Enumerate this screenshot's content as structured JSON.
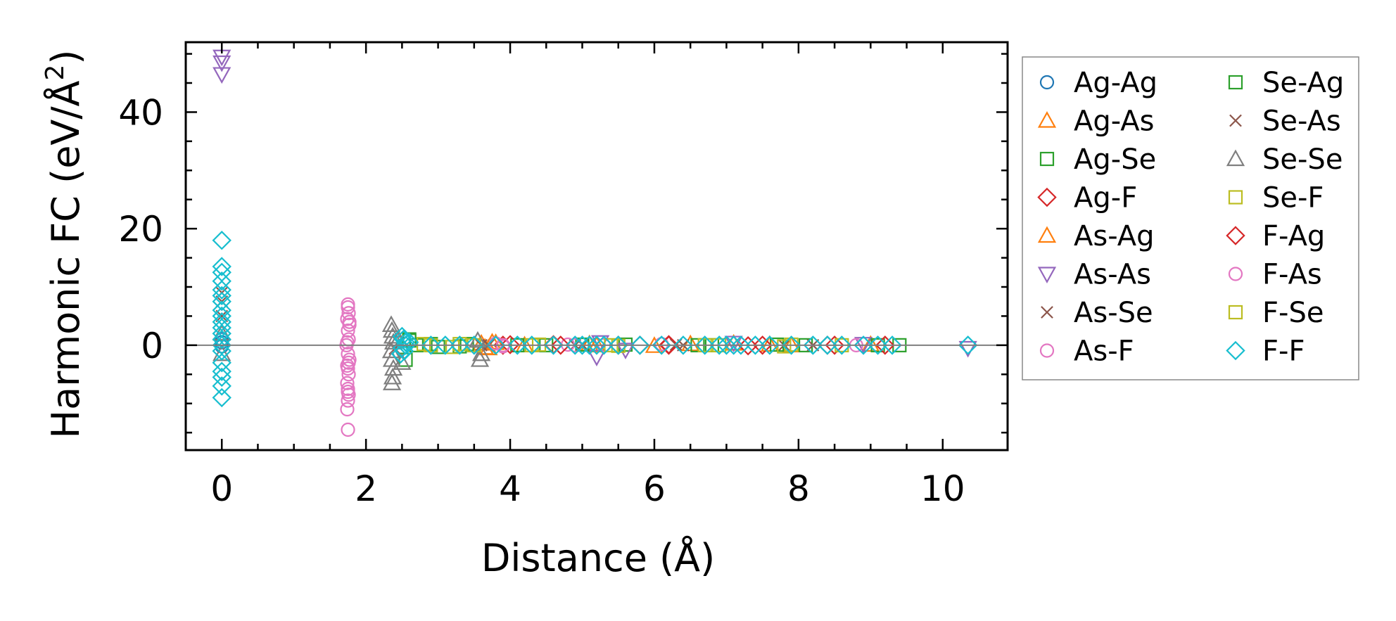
{
  "chart_data": {
    "type": "scatter",
    "title": "",
    "xlabel": "Distance (Å)",
    "ylabel_main": "Harmonic FC (eV/Å",
    "ylabel_sup": "2",
    "ylabel_end": ")",
    "xlim": [
      -0.5,
      10.9
    ],
    "ylim": [
      -18,
      52
    ],
    "xticks": [
      0,
      2,
      4,
      6,
      8,
      10
    ],
    "xtick_labels": [
      "0",
      "2",
      "4",
      "6",
      "8",
      "10"
    ],
    "yticks": [
      0,
      20,
      40
    ],
    "ytick_labels": [
      "0",
      "20",
      "40"
    ],
    "zero_line": 0,
    "legend_position": "outside right, upper",
    "series": [
      {
        "name": "Ag-Ag",
        "marker": "circle",
        "color": "#1f77b4",
        "x": [
          0,
          0,
          0
        ],
        "y": [
          0.5,
          -0.2,
          1.0
        ]
      },
      {
        "name": "Ag-As",
        "marker": "triangle-up",
        "color": "#ff7f0e",
        "x": [
          3.6,
          3.7,
          3.8,
          4.2,
          5.1,
          6.0,
          7.1,
          7.9,
          9.0
        ],
        "y": [
          0.3,
          -0.5,
          0.4,
          0.0,
          0.2,
          -0.1,
          0.3,
          0.0,
          0.1
        ]
      },
      {
        "name": "Ag-Se",
        "marker": "square",
        "color": "#2ca02c",
        "x": [
          2.55,
          2.6,
          2.9,
          3.3,
          4.5,
          5.6,
          6.8,
          8.1,
          9.4
        ],
        "y": [
          -2.5,
          1.0,
          0.2,
          -0.2,
          0.0,
          0.1,
          0.0,
          0.0,
          0.0
        ]
      },
      {
        "name": "Ag-F",
        "marker": "diamond",
        "color": "#d62728",
        "x": [
          3.9,
          4.6,
          5.5,
          6.2,
          7.3,
          8.5
        ],
        "y": [
          0.0,
          0.1,
          0.0,
          0.0,
          -0.1,
          0.0
        ]
      },
      {
        "name": "As-Ag",
        "marker": "triangle-up",
        "color": "#ff7f0e",
        "x": [
          3.65,
          3.75,
          5.2,
          6.5,
          7.6
        ],
        "y": [
          -0.4,
          0.5,
          0.0,
          0.2,
          0.1
        ]
      },
      {
        "name": "As-As",
        "marker": "triangle-down",
        "color": "#9467bd",
        "x": [
          0,
          0,
          0,
          5.2,
          5.25,
          5.6,
          7.1,
          8.9,
          10.35
        ],
        "y": [
          49.5,
          48.5,
          46.5,
          -2.0,
          0.5,
          -0.8,
          0.4,
          0.2,
          -0.5
        ]
      },
      {
        "name": "As-Se",
        "marker": "x",
        "color": "#8c564b",
        "x": [
          0,
          0,
          2.45,
          3.7,
          4.9,
          6.3,
          7.8
        ],
        "y": [
          9.0,
          7.5,
          0.5,
          0.0,
          0.0,
          0.1,
          0.0
        ]
      },
      {
        "name": "As-F",
        "marker": "circle",
        "color": "#e377c2",
        "x": [
          1.75,
          1.76,
          1.74,
          1.77,
          1.75,
          1.76,
          1.73,
          1.75,
          1.77,
          1.74,
          1.75,
          1.76,
          1.74,
          1.75,
          1.76,
          1.75,
          1.74,
          1.77,
          1.75,
          3.8,
          3.9,
          4.8,
          5.3,
          6.1,
          8.8
        ],
        "y": [
          7.0,
          5.5,
          4.5,
          3.5,
          2.5,
          1.0,
          0.0,
          -1.5,
          -2.5,
          -3.5,
          -4.0,
          -5.0,
          -6.5,
          -7.5,
          -8.5,
          -9.5,
          -11.0,
          4.0,
          -14.5,
          0.3,
          -0.2,
          0.1,
          0.0,
          0.2,
          0.0
        ]
      },
      {
        "name": "Se-Ag",
        "marker": "square",
        "color": "#2ca02c",
        "x": [
          2.6,
          2.7,
          3.0,
          3.4,
          4.1,
          5.0,
          6.6,
          7.7,
          9.1
        ],
        "y": [
          0.8,
          0.0,
          -0.3,
          0.2,
          0.0,
          0.1,
          0.0,
          0.1,
          0.0
        ]
      },
      {
        "name": "Se-As",
        "marker": "x",
        "color": "#8c564b",
        "x": [
          0,
          2.4,
          3.6,
          5.0,
          6.4,
          8.2
        ],
        "y": [
          5.0,
          -0.6,
          0.0,
          0.1,
          0.0,
          0.0
        ]
      },
      {
        "name": "Se-Se",
        "marker": "triangle-up",
        "color": "#7f7f7f",
        "x": [
          0,
          0,
          2.35,
          2.36,
          2.37,
          2.38,
          2.35,
          2.36,
          2.38,
          2.37,
          2.36,
          2.45,
          2.5,
          3.55,
          3.6,
          3.58
        ],
        "y": [
          2.0,
          -1.5,
          3.5,
          2.5,
          1.5,
          0.5,
          -1.0,
          -2.5,
          -4.0,
          -5.5,
          -6.5,
          1.0,
          -3.0,
          0.8,
          -1.5,
          -2.5
        ]
      },
      {
        "name": "Se-F",
        "marker": "square",
        "color": "#bcbd22",
        "x": [
          2.8,
          3.2,
          3.5,
          4.4,
          5.4,
          6.9,
          7.8,
          8.6
        ],
        "y": [
          0.2,
          -0.3,
          0.0,
          0.1,
          0.0,
          0.0,
          -0.2,
          0.0
        ]
      },
      {
        "name": "F-Ag",
        "marker": "diamond",
        "color": "#d62728",
        "x": [
          4.0,
          4.7,
          5.8,
          6.2,
          7.5,
          8.4,
          9.2
        ],
        "y": [
          0.1,
          0.0,
          0.0,
          0.1,
          0.0,
          0.0,
          0.0
        ]
      },
      {
        "name": "F-As",
        "marker": "circle",
        "color": "#e377c2",
        "x": [
          1.75,
          1.74,
          1.76,
          1.75,
          3.9,
          4.9
        ],
        "y": [
          6.5,
          0.5,
          -3.0,
          -8.0,
          0.0,
          0.0
        ]
      },
      {
        "name": "F-Se",
        "marker": "square",
        "color": "#bcbd22",
        "x": [
          2.9,
          3.3,
          4.3,
          5.5,
          6.7,
          7.9
        ],
        "y": [
          0.0,
          0.2,
          0.0,
          -0.1,
          0.0,
          0.1
        ]
      },
      {
        "name": "F-F",
        "marker": "diamond",
        "color": "#17becf",
        "x": [
          0,
          0,
          0,
          0,
          0,
          0,
          0,
          0,
          0,
          0,
          0,
          0,
          0,
          0,
          0,
          0,
          0,
          0,
          0,
          0,
          2.5,
          2.52,
          2.55,
          2.5,
          2.53,
          2.48,
          2.55,
          2.6,
          2.9,
          3.1,
          3.3,
          3.5,
          3.8,
          4.1,
          4.3,
          4.6,
          4.9,
          5.0,
          5.1,
          5.2,
          5.3,
          5.5,
          5.8,
          6.1,
          6.4,
          6.7,
          6.9,
          7.0,
          7.1,
          7.2,
          7.4,
          7.6,
          7.9,
          8.2,
          8.4,
          8.6,
          8.9,
          9.1,
          9.3,
          10.35
        ],
        "y": [
          18.0,
          13.5,
          12.5,
          11.0,
          9.5,
          8.5,
          7.5,
          6.0,
          5.0,
          4.0,
          3.0,
          2.0,
          1.0,
          0.0,
          -1.0,
          -3.0,
          -4.5,
          -5.5,
          -7.0,
          -9.0,
          1.5,
          1.0,
          0.5,
          -0.5,
          -1.0,
          -1.5,
          0.0,
          0.5,
          0.0,
          0.0,
          0.0,
          0.0,
          0.0,
          0.0,
          0.0,
          0.0,
          0.0,
          0.0,
          0.0,
          0.0,
          0.0,
          0.0,
          0.0,
          0.0,
          0.0,
          0.0,
          0.0,
          0.0,
          0.0,
          0.0,
          0.0,
          0.0,
          0.0,
          0.0,
          0.0,
          0.0,
          0.0,
          0.0,
          0.0,
          0.0
        ]
      }
    ]
  }
}
